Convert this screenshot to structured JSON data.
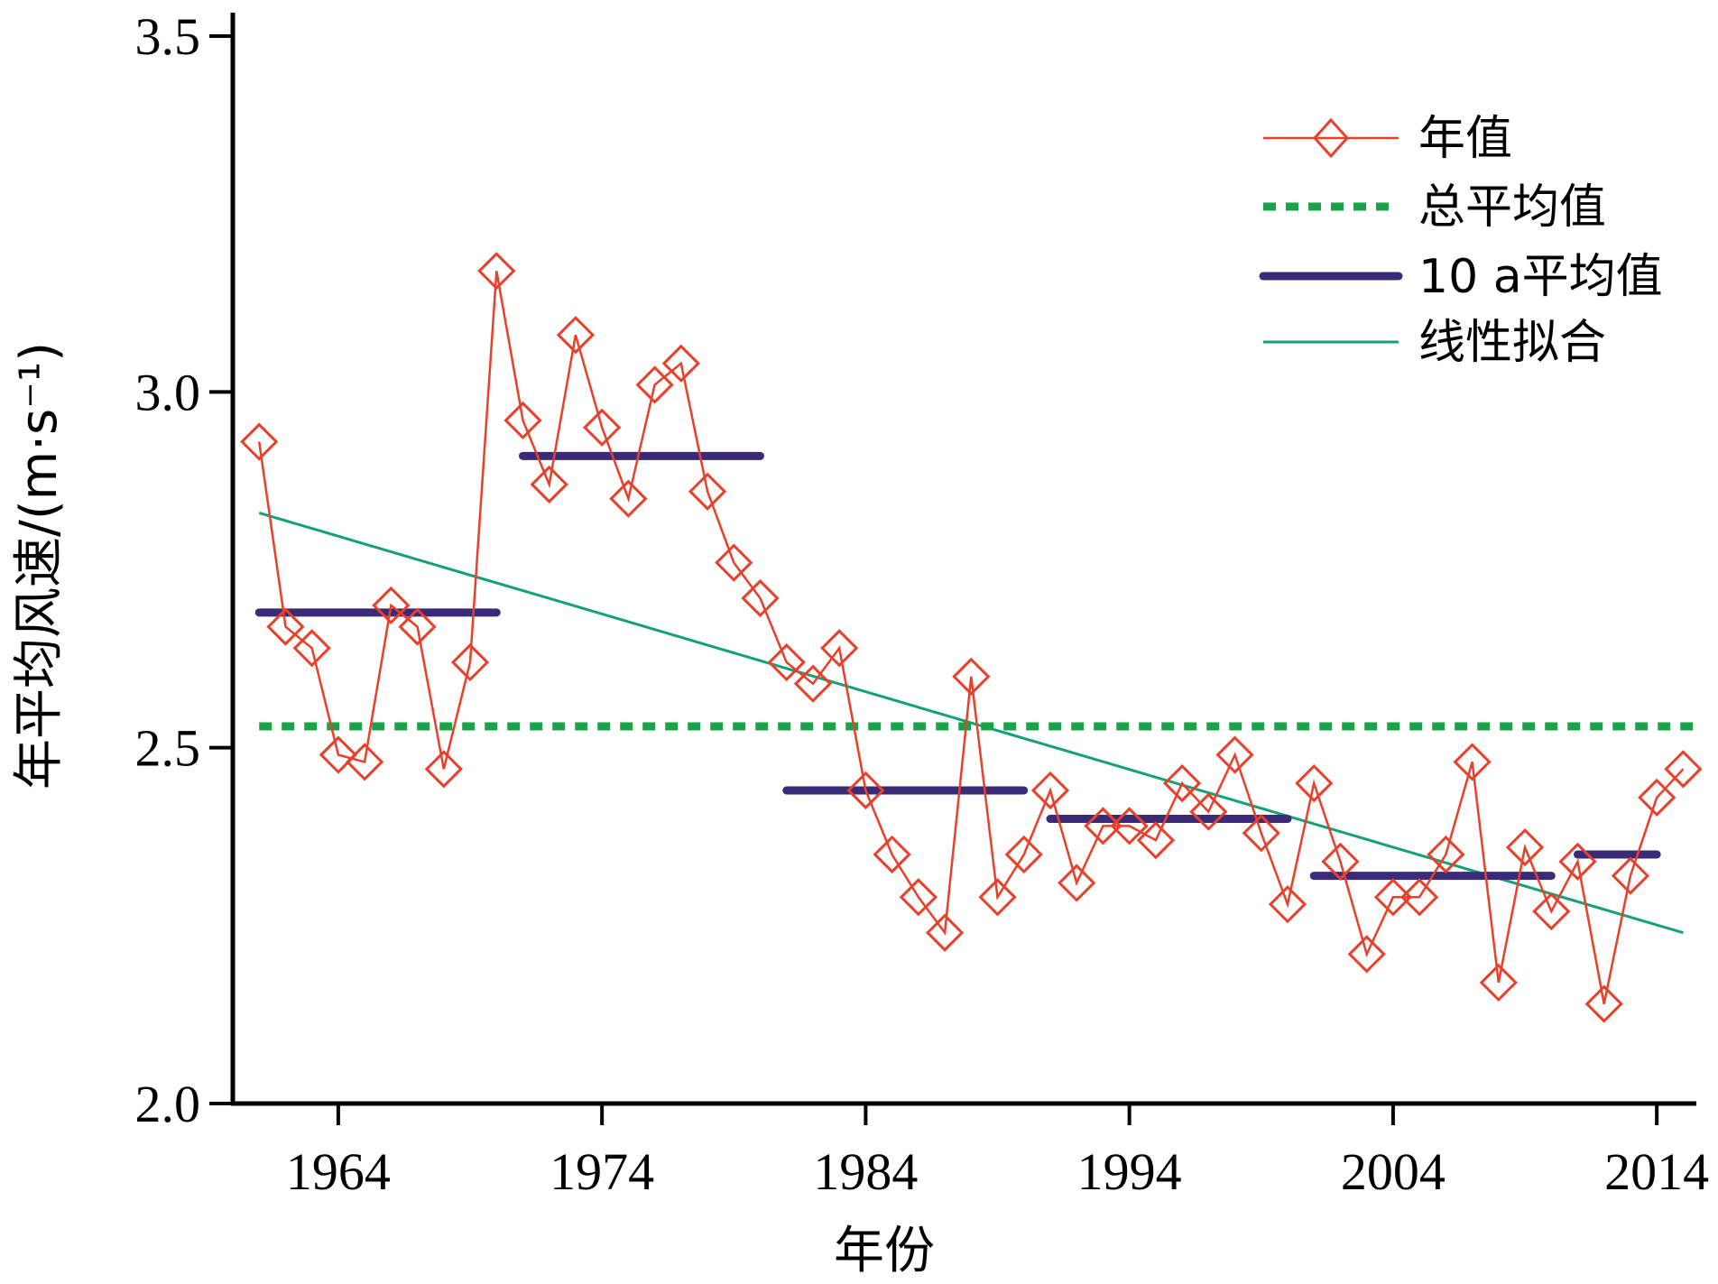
{
  "chart_data": {
    "type": "line",
    "xlabel": "年份",
    "ylabel": "年平均风速/(m·s⁻¹)",
    "xlim": [
      1960,
      2015.5
    ],
    "ylim": [
      2.0,
      3.5
    ],
    "xticks": [
      1964,
      1974,
      1984,
      1994,
      2004,
      2014
    ],
    "yticks": [
      2.0,
      2.5,
      3.0,
      3.5
    ],
    "ytick_labels": [
      "2.0",
      "2.5",
      "3.0",
      "3.5"
    ],
    "grid": false,
    "legend_position": "top-right",
    "colors": {
      "annual": "#e8402a",
      "overall_mean": "#1aa34a",
      "decadal_mean": "#3b2a78",
      "linear_fit": "#15a07a",
      "axis": "#000000"
    },
    "series": [
      {
        "name": "年值",
        "style": "line-diamond",
        "x": [
          1961,
          1962,
          1963,
          1964,
          1965,
          1966,
          1967,
          1968,
          1969,
          1970,
          1971,
          1972,
          1973,
          1974,
          1975,
          1976,
          1977,
          1978,
          1979,
          1980,
          1981,
          1982,
          1983,
          1984,
          1985,
          1986,
          1987,
          1988,
          1989,
          1990,
          1991,
          1992,
          1993,
          1994,
          1995,
          1996,
          1997,
          1998,
          1999,
          2000,
          2001,
          2002,
          2003,
          2004,
          2005,
          2006,
          2007,
          2008,
          2009,
          2010,
          2011,
          2012,
          2013,
          2014,
          2015
        ],
        "y": [
          2.93,
          2.67,
          2.64,
          2.49,
          2.48,
          2.7,
          2.67,
          2.47,
          2.62,
          3.17,
          2.96,
          2.87,
          3.08,
          2.95,
          2.85,
          3.01,
          3.04,
          2.86,
          2.76,
          2.71,
          2.62,
          2.59,
          2.64,
          2.44,
          2.35,
          2.29,
          2.24,
          2.6,
          2.29,
          2.35,
          2.44,
          2.31,
          2.39,
          2.39,
          2.37,
          2.45,
          2.41,
          2.49,
          2.38,
          2.28,
          2.45,
          2.34,
          2.21,
          2.29,
          2.29,
          2.35,
          2.48,
          2.17,
          2.36,
          2.27,
          2.34,
          2.14,
          2.32,
          2.43,
          2.47
        ]
      },
      {
        "name": "总平均值",
        "style": "dotted",
        "value": 2.53,
        "x_range": [
          1961,
          2015.5
        ]
      },
      {
        "name": "10 a平均值",
        "style": "thick-segments",
        "segments": [
          {
            "x": [
              1961,
              1970
            ],
            "y": 2.69
          },
          {
            "x": [
              1971,
              1980
            ],
            "y": 2.91
          },
          {
            "x": [
              1981,
              1990
            ],
            "y": 2.44
          },
          {
            "x": [
              1991,
              2000
            ],
            "y": 2.4
          },
          {
            "x": [
              2001,
              2010
            ],
            "y": 2.32
          },
          {
            "x": [
              2011,
              2014
            ],
            "y": 2.35
          }
        ]
      },
      {
        "name": "线性拟合",
        "style": "line",
        "x": [
          1961,
          2015
        ],
        "y": [
          2.83,
          2.24
        ]
      }
    ]
  }
}
